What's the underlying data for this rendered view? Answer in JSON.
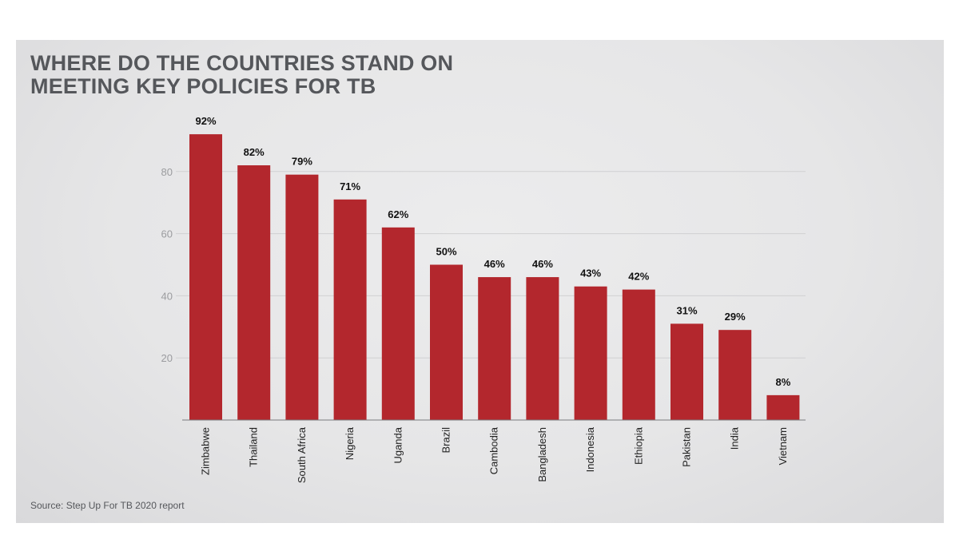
{
  "title_lines": [
    "WHERE DO THE COUNTRIES STAND ON",
    "MEETING KEY POLICIES FOR TB"
  ],
  "source": "Source: Step Up For TB 2020 report",
  "colors": {
    "bar": "#b3272d",
    "background": "#e6e6e7",
    "grid": "#d0d0d2",
    "title": "#55575b"
  },
  "chart_data": {
    "type": "bar",
    "title": "WHERE DO THE COUNTRIES STAND ON MEETING KEY POLICIES FOR TB",
    "xlabel": "",
    "ylabel": "",
    "categories": [
      "Zimbabwe",
      "Thailand",
      "South Africa",
      "Nigeria",
      "Uganda",
      "Brazil",
      "Cambodia",
      "Bangladesh",
      "Indonesia",
      "Ethiopia",
      "Pakistan",
      "India",
      "Vietnam"
    ],
    "values": [
      92,
      82,
      79,
      71,
      62,
      50,
      46,
      46,
      43,
      42,
      31,
      29,
      8
    ],
    "data_labels": [
      "92%",
      "82%",
      "79%",
      "71%",
      "62%",
      "50%",
      "46%",
      "46%",
      "43%",
      "42%",
      "31%",
      "29%",
      "8%"
    ],
    "yticks": [
      20,
      40,
      60,
      80
    ],
    "ylim": [
      0,
      100
    ],
    "grid": true,
    "legend": "none"
  }
}
